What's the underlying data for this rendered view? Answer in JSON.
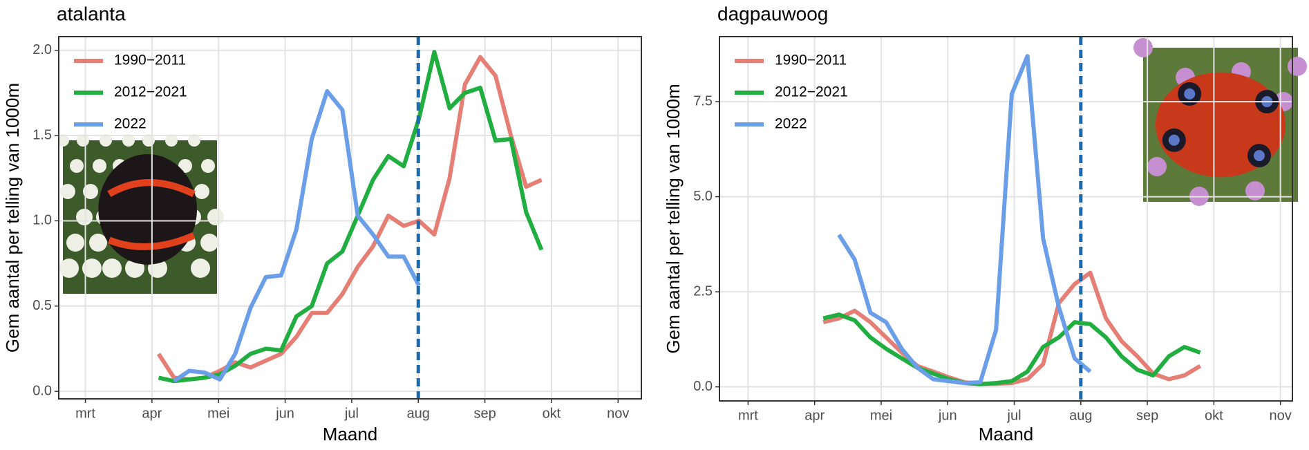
{
  "chart_data": [
    {
      "type": "line",
      "title": "atalanta",
      "x_label": "Maand",
      "y_label": "Gem aantal per telling van 1000m",
      "x": [
        4.1,
        4.33,
        4.56,
        4.79,
        5.02,
        5.25,
        5.48,
        5.71,
        5.94,
        6.17,
        6.4,
        6.63,
        6.86,
        7.09,
        7.32,
        7.55,
        7.78,
        8.01,
        8.24,
        8.47,
        8.7,
        8.93,
        9.16,
        9.39,
        9.62,
        9.85
      ],
      "series": [
        {
          "name": "1990−2011",
          "color": "#e57f76",
          "values": [
            0.22,
            0.08,
            0.07,
            0.08,
            0.12,
            0.17,
            0.14,
            0.18,
            0.22,
            0.32,
            0.46,
            0.46,
            0.57,
            0.73,
            0.85,
            1.03,
            0.97,
            1.0,
            0.92,
            1.25,
            1.8,
            1.96,
            1.85,
            1.5,
            1.2,
            1.24
          ]
        },
        {
          "name": "2012−2021",
          "color": "#1fae3f",
          "values": [
            0.08,
            0.06,
            0.07,
            0.08,
            0.1,
            0.15,
            0.22,
            0.25,
            0.24,
            0.44,
            0.5,
            0.75,
            0.82,
            1.03,
            1.24,
            1.38,
            1.32,
            1.6,
            1.99,
            1.66,
            1.75,
            1.78,
            1.47,
            1.48,
            1.05,
            0.83
          ]
        },
        {
          "name": "2022",
          "color": "#6a9ee8",
          "values": [
            null,
            0.06,
            0.12,
            0.11,
            0.07,
            0.22,
            0.49,
            0.67,
            0.68,
            0.95,
            1.48,
            1.76,
            1.65,
            1.03,
            0.92,
            0.79,
            0.79,
            0.62,
            null,
            null,
            null,
            null,
            null,
            null,
            null,
            null
          ]
        }
      ],
      "xlim": [
        2.6,
        11.35
      ],
      "xticks": [
        {
          "value": 3,
          "label": "mrt"
        },
        {
          "value": 4,
          "label": "apr"
        },
        {
          "value": 5,
          "label": "mei"
        },
        {
          "value": 6,
          "label": "jun"
        },
        {
          "value": 7,
          "label": "jul"
        },
        {
          "value": 8,
          "label": "aug"
        },
        {
          "value": 9,
          "label": "sep"
        },
        {
          "value": 10,
          "label": "okt"
        },
        {
          "value": 11,
          "label": "nov"
        }
      ],
      "ylim": [
        -0.044,
        2.08
      ],
      "yticks": [
        {
          "value": 0,
          "label": "0.0"
        },
        0.5,
        {
          "value": 1,
          "label": "1.0"
        },
        1.5,
        {
          "value": 2,
          "label": "2.0"
        }
      ],
      "vline": {
        "value": 8,
        "color": "#1a6aad"
      },
      "grid": true,
      "legend": "top-left"
    },
    {
      "type": "line",
      "title": "dagpauwoog",
      "x_label": "Maand",
      "y_label": "Gem aantal per telling van 1000m",
      "x": [
        4.13,
        4.366,
        4.602,
        4.838,
        5.074,
        5.31,
        5.546,
        5.782,
        6.018,
        6.254,
        6.49,
        6.726,
        6.962,
        7.198,
        7.434,
        7.67,
        7.906,
        8.142,
        8.378,
        8.614,
        8.85,
        9.086,
        9.322,
        9.558,
        9.794
      ],
      "series": [
        {
          "name": "1990−2011",
          "color": "#e57f76",
          "values": [
            1.7,
            1.8,
            2.0,
            1.7,
            1.3,
            0.9,
            0.55,
            0.4,
            0.25,
            0.12,
            0.08,
            0.08,
            0.1,
            0.2,
            0.6,
            2.2,
            2.7,
            3.0,
            1.8,
            1.2,
            0.8,
            0.35,
            0.2,
            0.3,
            0.55
          ]
        },
        {
          "name": "2012−2021",
          "color": "#1fae3f",
          "values": [
            1.8,
            1.9,
            1.75,
            1.3,
            1.0,
            0.75,
            0.5,
            0.35,
            0.2,
            0.1,
            0.07,
            0.1,
            0.15,
            0.4,
            1.05,
            1.3,
            1.7,
            1.65,
            1.3,
            0.8,
            0.45,
            0.3,
            0.8,
            1.05,
            0.9
          ]
        },
        {
          "name": "2022",
          "color": "#6a9ee8",
          "values": [
            null,
            4.0,
            3.35,
            1.95,
            1.7,
            1.0,
            0.5,
            0.2,
            0.15,
            0.1,
            0.12,
            1.5,
            7.7,
            8.7,
            3.9,
            2.1,
            0.75,
            0.4,
            null,
            null,
            null,
            null,
            null,
            null,
            null
          ]
        }
      ],
      "xlim": [
        2.57,
        11.18
      ],
      "xticks": [
        {
          "value": 3,
          "label": "mrt"
        },
        {
          "value": 4,
          "label": "apr"
        },
        {
          "value": 5,
          "label": "mei"
        },
        {
          "value": 6,
          "label": "jun"
        },
        {
          "value": 7,
          "label": "jul"
        },
        {
          "value": 8,
          "label": "aug"
        },
        {
          "value": 9,
          "label": "sep"
        },
        {
          "value": 10,
          "label": "okt"
        },
        {
          "value": 11,
          "label": "nov"
        }
      ],
      "ylim": [
        -0.37,
        9.21
      ],
      "yticks": [
        {
          "value": 0,
          "label": "0.0"
        },
        2.5,
        {
          "value": 5,
          "label": "5.0"
        },
        7.5
      ],
      "vline": {
        "value": 8,
        "color": "#1a6aad"
      },
      "grid": true,
      "legend": "top-left"
    }
  ]
}
